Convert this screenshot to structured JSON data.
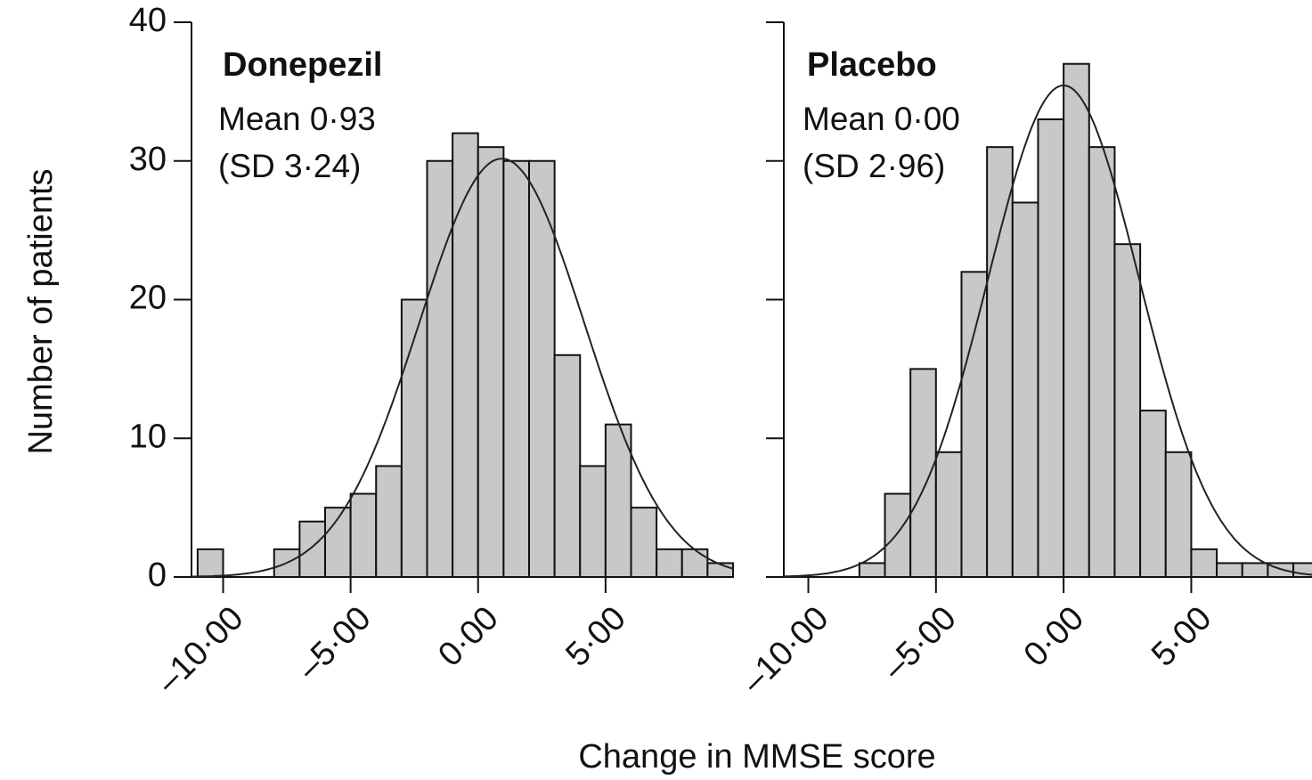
{
  "figure": {
    "xlabel": "Change in MMSE score",
    "ylabel": "Number of patients"
  },
  "chart_data": [
    {
      "type": "histogram",
      "title": "Donepezil",
      "annotations": [
        "Mean 0·93",
        "(SD 3·24)"
      ],
      "normal_fit": {
        "mean": 0.93,
        "sd": 3.24
      },
      "bins": [
        -11,
        -10,
        -9,
        -8,
        -7,
        -6,
        -5,
        -4,
        -3,
        -2,
        -1,
        0,
        1,
        2,
        3,
        4,
        5,
        6,
        7,
        8,
        9,
        10
      ],
      "values": [
        2,
        0,
        0,
        2,
        4,
        5,
        6,
        8,
        20,
        30,
        32,
        31,
        30,
        30,
        16,
        8,
        11,
        5,
        2,
        2,
        1
      ],
      "color": "#c8c8c8",
      "xlim": [
        -11.24,
        10
      ],
      "ylim": [
        0,
        40
      ],
      "xticks": [
        {
          "value": -10,
          "label": "–10·00"
        },
        {
          "value": -5,
          "label": "–5·00"
        },
        {
          "value": 0,
          "label": "0·00"
        },
        {
          "value": 5,
          "label": "5·00"
        }
      ],
      "yticks": [
        0,
        10,
        20,
        30,
        40
      ],
      "ytick_labels": true
    },
    {
      "type": "histogram",
      "title": "Placebo",
      "annotations": [
        "Mean 0·00",
        "(SD 2·96)"
      ],
      "normal_fit": {
        "mean": 0.0,
        "sd": 2.96
      },
      "bins": [
        -8,
        -7,
        -6,
        -5,
        -4,
        -3,
        -2,
        -1,
        0,
        1,
        2,
        3,
        4,
        5,
        6,
        7,
        8,
        9,
        10
      ],
      "values": [
        1,
        6,
        15,
        9,
        22,
        31,
        27,
        33,
        37,
        31,
        24,
        12,
        9,
        2,
        1,
        1,
        1,
        1
      ],
      "color": "#c8c8c8",
      "xlim": [
        -10.96,
        9.73
      ],
      "ylim": [
        0,
        40
      ],
      "xticks": [
        {
          "value": -10,
          "label": "–10·00"
        },
        {
          "value": -5,
          "label": "–5·00"
        },
        {
          "value": 0,
          "label": "0·00"
        },
        {
          "value": 5,
          "label": "5·00"
        }
      ],
      "yticks": [
        0,
        10,
        20,
        30,
        40
      ],
      "ytick_labels": false
    }
  ]
}
